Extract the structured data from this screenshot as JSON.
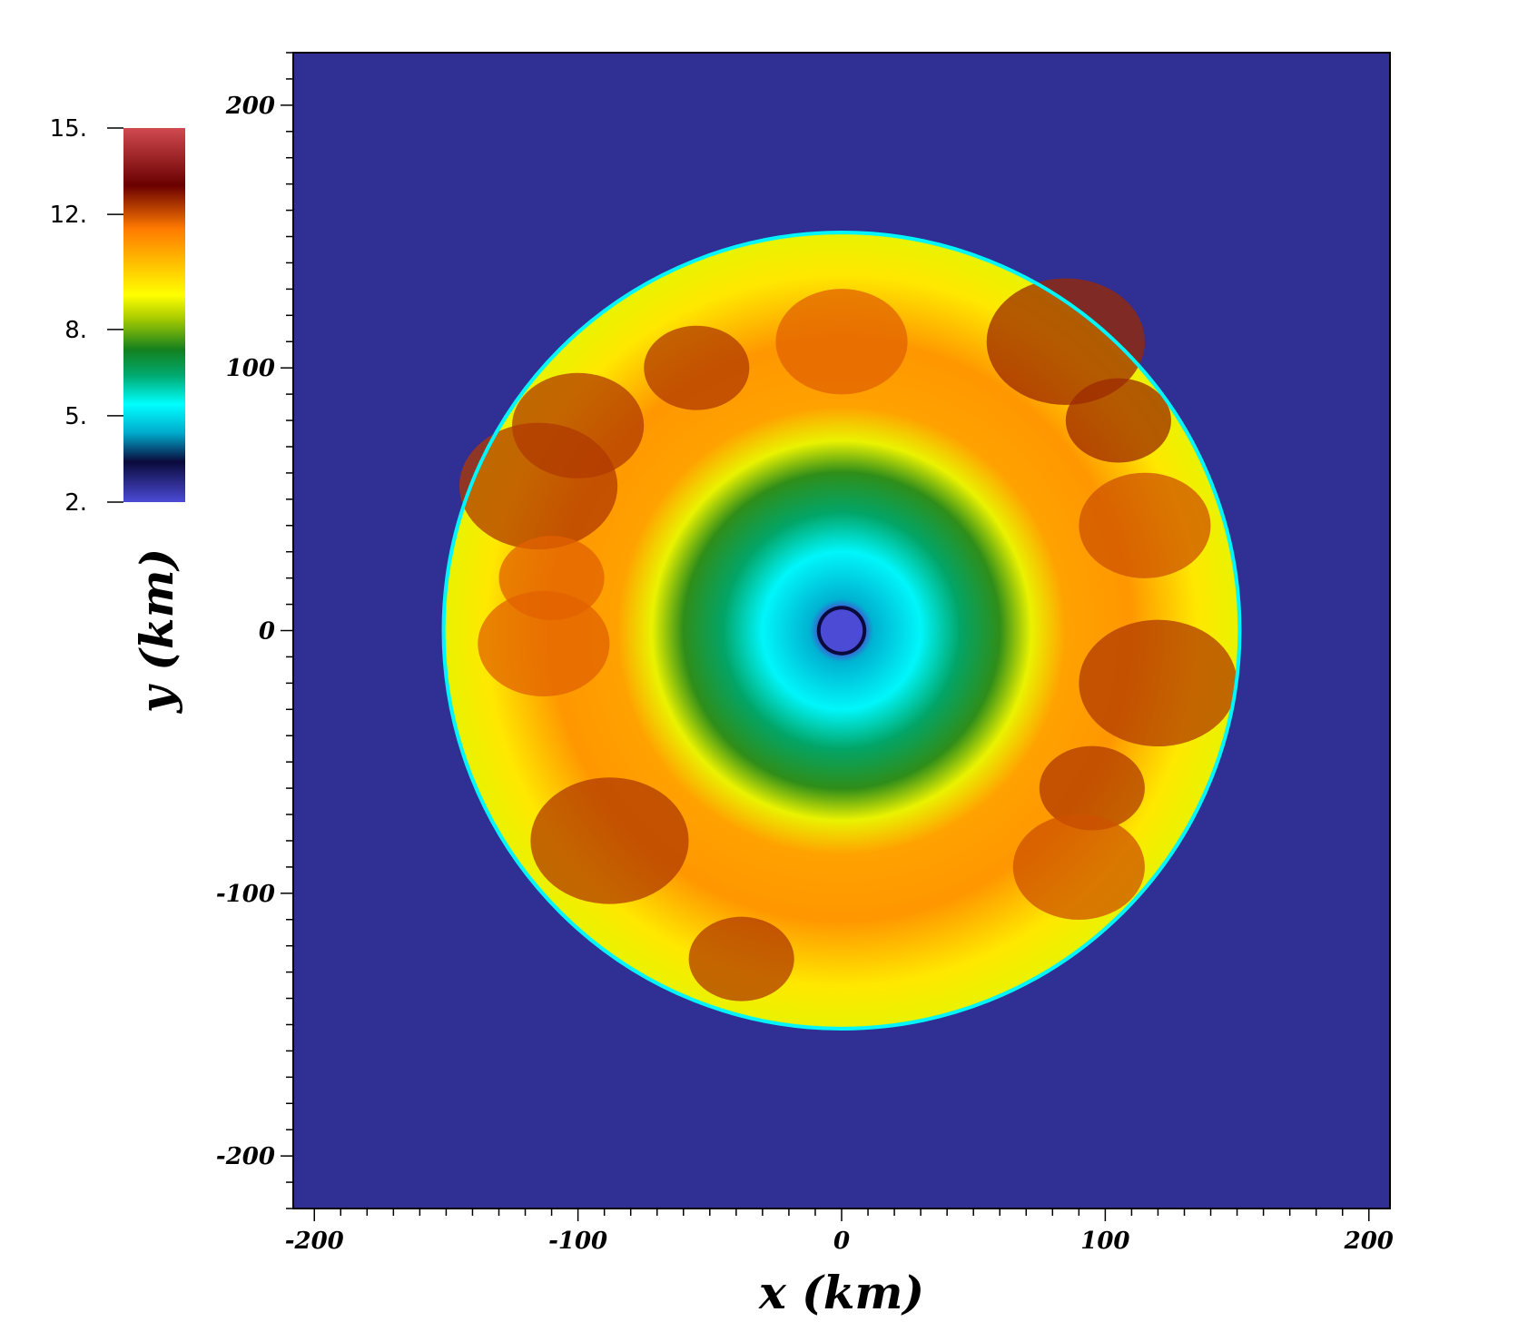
{
  "chart_data": {
    "type": "heatmap",
    "title": "",
    "xlabel": "x   (km)",
    "ylabel": "y   (km)",
    "xlim": [
      -208,
      208
    ],
    "ylim": [
      -220,
      220
    ],
    "x_ticks": [
      -200,
      -100,
      0,
      100,
      200
    ],
    "y_ticks": [
      200,
      100,
      0,
      -100,
      -200
    ],
    "x_tick_labels": [
      "-200",
      "-100",
      "0",
      "100",
      "200"
    ],
    "y_tick_labels": [
      "200",
      "100",
      "0",
      "-100",
      "-200"
    ],
    "minor_tick_step": 10,
    "colorbar": {
      "range": [
        2,
        15
      ],
      "ticks": [
        15,
        12,
        8,
        5,
        2
      ],
      "tick_labels": [
        "15.",
        "12.",
        "8.",
        "5.",
        "2."
      ],
      "colormap": [
        {
          "value": 2.0,
          "color": "#4b4bd6"
        },
        {
          "value": 3.4,
          "color": "#0a0a3c"
        },
        {
          "value": 4.4,
          "color": "#00aacc"
        },
        {
          "value": 5.4,
          "color": "#00ffff"
        },
        {
          "value": 6.4,
          "color": "#00aa70"
        },
        {
          "value": 7.3,
          "color": "#14801e"
        },
        {
          "value": 8.4,
          "color": "#aacc00"
        },
        {
          "value": 9.2,
          "color": "#ffff00"
        },
        {
          "value": 11.5,
          "color": "#ff7a00"
        },
        {
          "value": 13.0,
          "color": "#6a0000"
        },
        {
          "value": 15.0,
          "color": "#d04a50"
        }
      ]
    },
    "background_value": 2.6,
    "field": {
      "disk_center": [
        0,
        0
      ],
      "disk_outer_radius_km": 151,
      "inner_core_radius_km": 8,
      "radial_profile": [
        {
          "r": 0,
          "value": 2.0
        },
        {
          "r": 8,
          "value": 2.0
        },
        {
          "r": 12,
          "value": 4.5
        },
        {
          "r": 30,
          "value": 5.3
        },
        {
          "r": 45,
          "value": 6.5
        },
        {
          "r": 60,
          "value": 7.5
        },
        {
          "r": 72,
          "value": 9.0
        },
        {
          "r": 85,
          "value": 10.8
        },
        {
          "r": 110,
          "value": 11.0
        },
        {
          "r": 135,
          "value": 9.6
        },
        {
          "r": 150,
          "value": 9.0
        },
        {
          "r": 151,
          "value": 5.3
        }
      ],
      "hot_spots": [
        {
          "x": -55,
          "y": 100,
          "value": 12.3
        },
        {
          "x": -100,
          "y": 78,
          "value": 12.3
        },
        {
          "x": -115,
          "y": 55,
          "value": 12.3
        },
        {
          "x": -110,
          "y": 20,
          "value": 11.8
        },
        {
          "x": -113,
          "y": -5,
          "value": 11.8
        },
        {
          "x": -88,
          "y": -80,
          "value": 12.3
        },
        {
          "x": -38,
          "y": -125,
          "value": 12.3
        },
        {
          "x": 0,
          "y": 110,
          "value": 11.8
        },
        {
          "x": 85,
          "y": 110,
          "value": 12.5
        },
        {
          "x": 105,
          "y": 80,
          "value": 12.5
        },
        {
          "x": 115,
          "y": 40,
          "value": 12.0
        },
        {
          "x": 120,
          "y": -20,
          "value": 12.3
        },
        {
          "x": 95,
          "y": -60,
          "value": 12.3
        },
        {
          "x": 90,
          "y": -90,
          "value": 12.0
        }
      ]
    }
  }
}
